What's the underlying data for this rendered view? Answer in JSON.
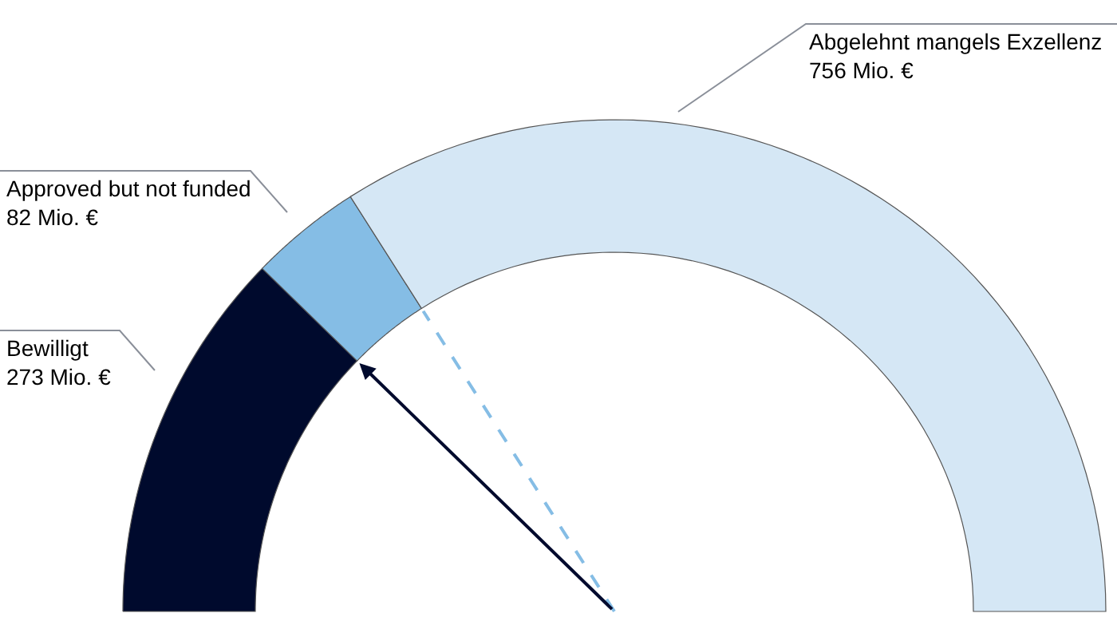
{
  "chart_data": {
    "type": "donut",
    "categories": [
      "Bewilligt",
      "Approved but not funded",
      "Abgelehnt mangels Exzellenz"
    ],
    "values": [
      273,
      82,
      756
    ],
    "colors": [
      "#000a2d",
      "#85bde5",
      "#d5e7f5"
    ],
    "value_labels": [
      "273 Mio. €",
      "82 Mio. €",
      "756 Mio. €"
    ],
    "needle": "Approved but not funded",
    "legend": false
  }
}
